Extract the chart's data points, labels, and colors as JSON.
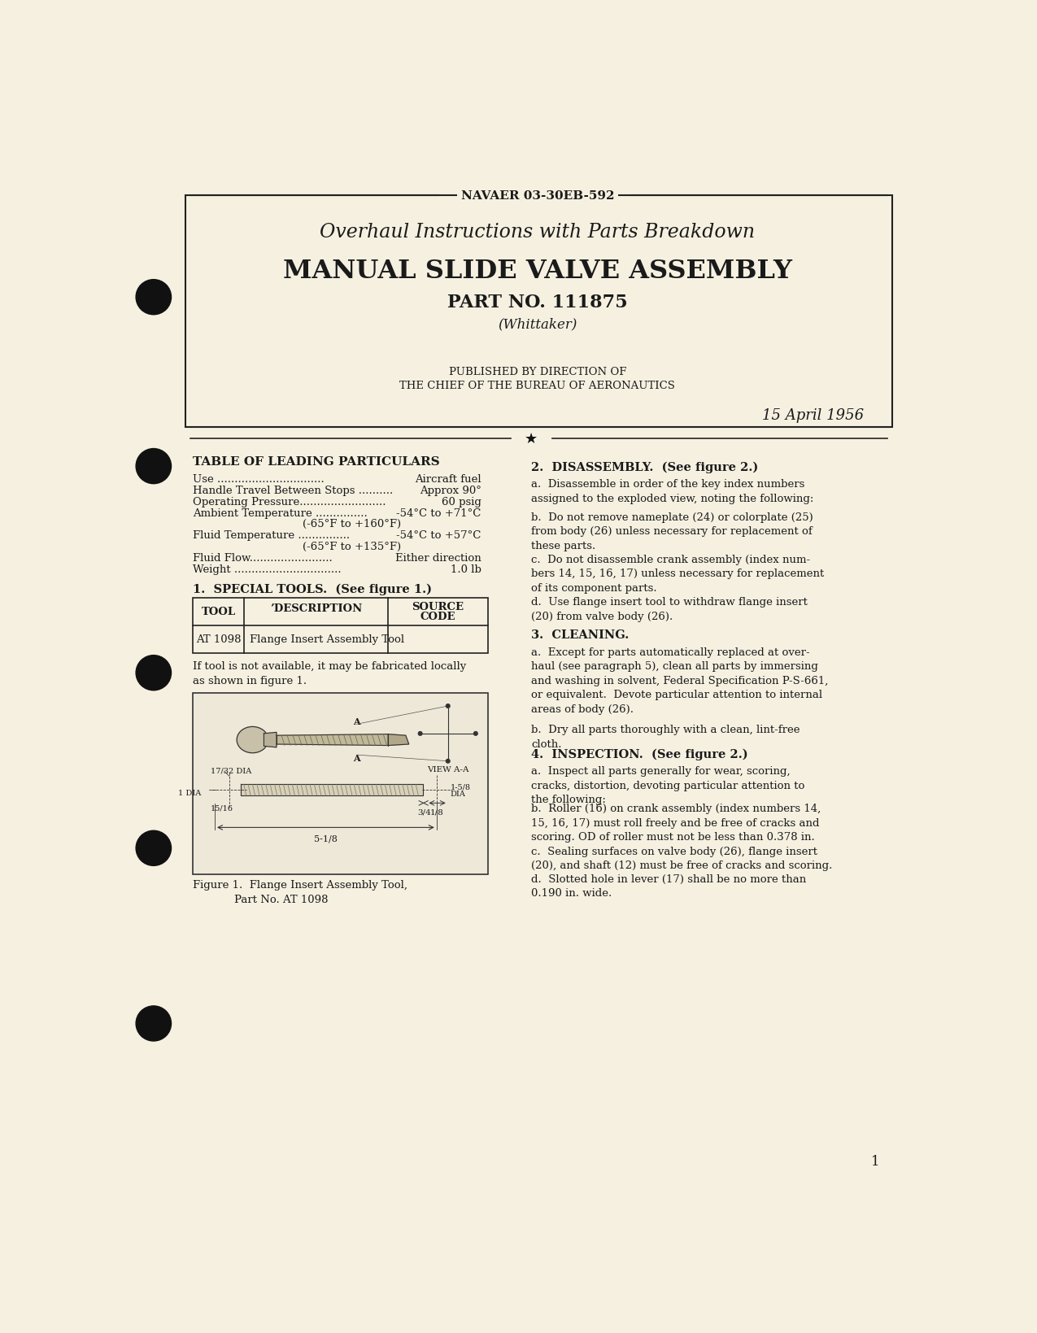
{
  "bg_color": "#f5f0e0",
  "text_color": "#1a1a1a",
  "header_doc_num": "NAVAER 03-30EB-592",
  "title_line1": "Overhaul Instructions with Parts Breakdown",
  "title_line2": "MANUAL SLIDE VALVE ASSEMBLY",
  "title_line3": "PART NO. 111875",
  "title_line4": "(Whittaker)",
  "published_line1": "PUBLISHED BY DIRECTION OF",
  "published_line2": "THE CHIEF OF THE BUREAU OF AERONAUTICS",
  "date": "15 April 1956",
  "section_left_title": "TABLE OF LEADING PARTICULARS",
  "particulars": [
    [
      "Use ",
      "...............................",
      "Aircraft fuel"
    ],
    [
      "Handle Travel Between Stops ",
      "..........",
      "Approx 90°"
    ],
    [
      "Operating Pressure",
      ".........................",
      "60 psig"
    ],
    [
      "Ambient Temperature ",
      "...............",
      "-54°C to +71°C"
    ],
    [
      "",
      "",
      "(-65°F to +160°F)"
    ],
    [
      "Fluid Temperature ",
      "...............",
      "-54°C to +57°C"
    ],
    [
      "",
      "",
      "(-65°F to +135°F)"
    ],
    [
      "Fluid Flow",
      "........................",
      "Either direction"
    ],
    [
      "Weight ",
      "...............................",
      "1.0 lb"
    ]
  ],
  "special_tools_title": "1.  SPECIAL TOOLS.  (See figure 1.)",
  "tool_table_row": [
    "AT 1098",
    "Flange Insert Assembly Tool",
    ""
  ],
  "tool_note": "If tool is not available, it may be fabricated locally\nas shown in figure 1.",
  "figure_caption": "Figure 1.  Flange Insert Assembly Tool,\n            Part No. AT 1098",
  "right_col_title": "2.  DISASSEMBLY.  (See figure 2.)",
  "right_col_para_a": "a.  Disassemble in order of the key index numbers\nassigned to the exploded view, noting the following:",
  "right_col_para_b": "b.  Do not remove nameplate (24) or colorplate (25)\nfrom body (26) unless necessary for replacement of\nthese parts.",
  "right_col_para_c": "c.  Do not disassemble crank assembly (index num-\nbers 14, 15, 16, 17) unless necessary for replacement\nof its component parts.",
  "right_col_para_d": "d.  Use flange insert tool to withdraw flange insert\n(20) from valve body (26).",
  "cleaning_title": "3.  CLEANING.",
  "cleaning_para_a": "a.  Except for parts automatically replaced at over-\nhaul (see paragraph 5), clean all parts by immersing\nand washing in solvent, Federal Specification P-S-661,\nor equivalent.  Devote particular attention to internal\nareas of body (26).",
  "cleaning_para_b": "b.  Dry all parts thoroughly with a clean, lint-free\ncloth.",
  "inspection_title": "4.  INSPECTION.  (See figure 2.)",
  "inspection_para_a": "a.  Inspect all parts generally for wear, scoring,\ncracks, distortion, devoting particular attention to\nthe following:",
  "inspection_para_b": "b.  Roller (16) on crank assembly (index numbers 14,\n15, 16, 17) must roll freely and be free of cracks and\nscoring. OD of roller must not be less than 0.378 in.",
  "inspection_para_c": "c.  Sealing surfaces on valve body (26), flange insert\n(20), and shaft (12) must be free of cracks and scoring.",
  "inspection_para_d": "d.  Slotted hole in lever (17) shall be no more than\n0.190 in. wide.",
  "page_num": "1"
}
